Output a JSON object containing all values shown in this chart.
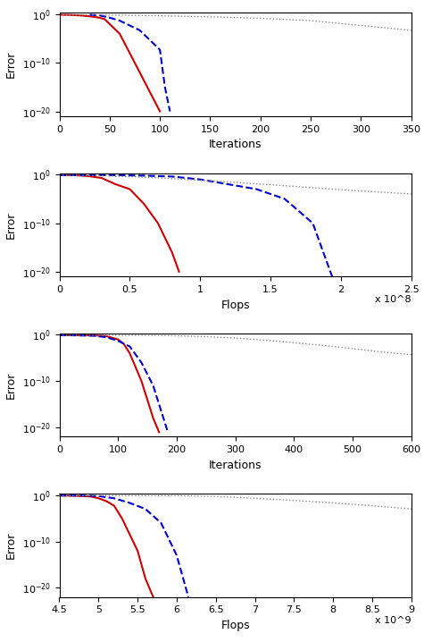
{
  "plots": [
    {
      "xlabel": "Iterations",
      "xlim": [
        0,
        350
      ],
      "xticks": [
        0,
        50,
        100,
        150,
        200,
        250,
        300,
        350
      ],
      "ylim_log": [
        -21,
        0
      ],
      "yticks_log": [
        0,
        -10,
        -20
      ],
      "ytick_labels": [
        "10^0",
        "10^{-10}",
        "10^{-20}"
      ],
      "red_x": [
        0,
        10,
        20,
        30,
        40,
        45,
        50,
        55,
        60,
        65,
        70,
        75,
        80,
        85,
        90,
        95,
        100
      ],
      "red_y": [
        0.8,
        0.75,
        0.6,
        0.4,
        0.2,
        0.1,
        0.01,
        0.001,
        0.0001,
        1e-06,
        1e-08,
        1e-10,
        1e-12,
        1e-14,
        1e-16,
        1e-18,
        1e-20
      ],
      "blue_x": [
        30,
        40,
        50,
        60,
        70,
        80,
        90,
        100,
        105,
        110
      ],
      "blue_y": [
        0.8,
        0.6,
        0.2,
        0.05,
        0.005,
        0.0005,
        5e-06,
        5e-08,
        1e-15,
        1e-20
      ],
      "gray_x": [
        0,
        50,
        100,
        150,
        200,
        250,
        300,
        350
      ],
      "gray_y": [
        0.8,
        0.7,
        0.5,
        0.3,
        0.15,
        0.05,
        0.005,
        0.0005
      ]
    },
    {
      "xlabel": "Flops",
      "xlim": [
        0,
        250000000.0
      ],
      "xtick_vals": [
        0,
        50000000.0,
        100000000.0,
        150000000.0,
        200000000.0,
        250000000.0
      ],
      "xtick_labels": [
        "0",
        "0.5",
        "1",
        "1.5",
        "2",
        "2.5"
      ],
      "xscale_label": "x 10^8",
      "ylim_log": [
        -21,
        0
      ],
      "red_x": [
        0,
        10000000.0,
        20000000.0,
        30000000.0,
        40000000.0,
        50000000.0,
        60000000.0,
        70000000.0,
        80000000.0,
        85000000.0
      ],
      "red_y": [
        0.8,
        0.75,
        0.5,
        0.2,
        0.01,
        0.001,
        1e-06,
        1e-10,
        1e-16,
        1e-20
      ],
      "blue_x": [
        0,
        20000000.0,
        40000000.0,
        60000000.0,
        80000000.0,
        100000000.0,
        120000000.0,
        140000000.0,
        160000000.0,
        180000000.0,
        190000000.0,
        195000000.0
      ],
      "blue_y": [
        0.8,
        0.78,
        0.75,
        0.6,
        0.4,
        0.1,
        0.01,
        0.001,
        1e-05,
        1e-10,
        1e-18,
        1e-22
      ],
      "gray_x": [
        0,
        30000000.0,
        60000000.0,
        90000000.0,
        120000000.0,
        150000000.0,
        180000000.0,
        210000000.0,
        250000000.0
      ],
      "gray_y": [
        0.8,
        0.6,
        0.3,
        0.1,
        0.03,
        0.008,
        0.002,
        0.0005,
        0.0001
      ]
    },
    {
      "xlabel": "Iterations",
      "xlim": [
        0,
        600
      ],
      "xticks": [
        0,
        100,
        200,
        300,
        400,
        500,
        600
      ],
      "ylim_log": [
        -22,
        0
      ],
      "red_x": [
        0,
        10,
        30,
        60,
        80,
        100,
        110,
        120,
        130,
        140,
        150,
        160,
        170
      ],
      "red_y": [
        0.8,
        0.79,
        0.78,
        0.75,
        0.5,
        0.1,
        0.01,
        0.0001,
        1e-07,
        1e-10,
        1e-14,
        1e-18,
        1e-21
      ],
      "blue_x": [
        0,
        20,
        60,
        80,
        100,
        120,
        140,
        160,
        175,
        185
      ],
      "blue_y": [
        0.78,
        0.77,
        0.6,
        0.3,
        0.05,
        0.003,
        1e-06,
        1e-11,
        1e-17,
        1e-21
      ],
      "gray_x": [
        0,
        50,
        100,
        150,
        200,
        250,
        300,
        350,
        400,
        450,
        500,
        550,
        600
      ],
      "gray_y": [
        0.8,
        0.79,
        0.78,
        0.77,
        0.6,
        0.4,
        0.2,
        0.07,
        0.02,
        0.005,
        0.001,
        0.0002,
        5e-05
      ]
    },
    {
      "xlabel": "Flops",
      "xlim": [
        4500000000.0,
        9000000000.0
      ],
      "xtick_vals": [
        4500000000.0,
        5000000000.0,
        5500000000.0,
        6000000000.0,
        6500000000.0,
        7000000000.0,
        7500000000.0,
        8000000000.0,
        8500000000.0,
        9000000000.0
      ],
      "xtick_labels": [
        "4.5",
        "5",
        "5.5",
        "6",
        "6.5",
        "7",
        "7.5",
        "8",
        "8.5",
        "9"
      ],
      "xscale_label": "x 10^9",
      "ylim_log": [
        -22,
        0
      ],
      "red_x": [
        4500000000.0,
        4700000000.0,
        4900000000.0,
        5000000000.0,
        5100000000.0,
        5200000000.0,
        5300000000.0,
        5500000000.0,
        5600000000.0,
        5700000000.0
      ],
      "red_y": [
        0.8,
        0.7,
        0.5,
        0.2,
        0.05,
        0.005,
        1e-05,
        1e-12,
        1e-18,
        1e-22
      ],
      "blue_x": [
        4500000000.0,
        4800000000.0,
        5000000000.0,
        5200000000.0,
        5400000000.0,
        5600000000.0,
        5800000000.0,
        6000000000.0,
        6100000000.0,
        6150000000.0
      ],
      "blue_y": [
        0.78,
        0.77,
        0.6,
        0.2,
        0.02,
        0.001,
        1e-06,
        1e-13,
        1e-19,
        1e-22
      ],
      "gray_x": [
        4500000000.0,
        5000000000.0,
        5500000000.0,
        6000000000.0,
        6500000000.0,
        7000000000.0,
        7500000000.0,
        8000000000.0,
        8500000000.0,
        9000000000.0
      ],
      "gray_y": [
        0.78,
        0.77,
        0.76,
        0.75,
        0.5,
        0.2,
        0.07,
        0.02,
        0.005,
        0.001
      ]
    }
  ],
  "red_color": "#cc0000",
  "blue_color": "#0000cc",
  "gray_color": "#888888",
  "red_lw": 1.5,
  "blue_lw": 1.5,
  "gray_lw": 1.0,
  "ylabel": "Error",
  "font_size": 9
}
